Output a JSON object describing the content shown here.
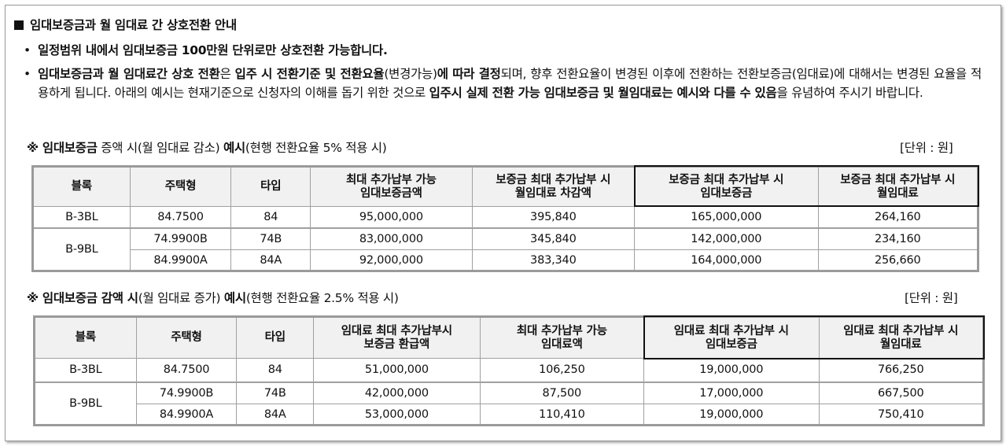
{
  "heading": "임대보증금과 월 임대료 간 상호전환 안내",
  "bullet_mark": "•",
  "bullet1": "일정범위 내에서 임대보증금 100만원 단위로만 상호전환 가능합니다.",
  "bullet2": {
    "p1": "임대보증금과 월 임대료간 상호 전환",
    "p2": "은 ",
    "p3": "입주 시 전환기준 및 전환요율",
    "p4": "(변경가능)",
    "p5": "에 따라 결정",
    "p6": "되며, 향후 전환요율이 변경된 이후에 전환하는 전환보증금(임대료)에 대해서는 변경된 요율을 적용하게 됩니다. 아래의 예시는 현재기준으로 신청자의 이해를 돕기 위한 것으로 ",
    "p7": "입주시 실제 전환 가능 임대보증금 및 월임대료는 예시와 다를 수 있음",
    "p8": "을 유념하여 주시기 바랍니다."
  },
  "section1": {
    "p1": "※ 임대보증금",
    "p2": " 증액 시",
    "p3": "(월 임대료 감소) ",
    "p4": "예시",
    "p5": "(현행 전환요율 5% 적용 시)",
    "unit": "[단위 : 원]",
    "headers": [
      [
        "블록"
      ],
      [
        "주택형"
      ],
      [
        "타입"
      ],
      [
        "최대 추가납부 가능",
        "임대보증금액"
      ],
      [
        "보증금 최대 추가납부 시",
        "월임대료 차감액"
      ],
      [
        "보증금 최대 추가납부 시",
        "임대보증금"
      ],
      [
        "보증금 최대 추가납부 시",
        "월임대료"
      ]
    ],
    "rows": [
      {
        "block": "B-3BL",
        "type": "84.7500",
        "tp": "84",
        "a": "95,000,000",
        "b": "395,840",
        "c": "165,000,000",
        "d": "264,160"
      },
      {
        "block": "B-9BL",
        "type": "74.9900B",
        "tp": "74B",
        "a": "83,000,000",
        "b": "345,840",
        "c": "142,000,000",
        "d": "234,160"
      },
      {
        "type": "84.9900A",
        "tp": "84A",
        "a": "92,000,000",
        "b": "383,340",
        "c": "164,000,000",
        "d": "256,660"
      }
    ]
  },
  "section2": {
    "p1": "※ 임대보증금 감액 시",
    "p2": "(월 임대료 증가) ",
    "p3": "예시",
    "p4": "(현행 전환요율 2.5% 적용 시)",
    "unit": "[단위 : 원]",
    "headers": [
      [
        "블록"
      ],
      [
        "주택형"
      ],
      [
        "타입"
      ],
      [
        "임대료 최대 추가납부시",
        "보증금 환급액"
      ],
      [
        "최대 추가납부 가능",
        "임대료액"
      ],
      [
        "임대료 최대 추가납부 시",
        "임대보증금"
      ],
      [
        "임대료 최대 추가납부 시",
        "월임대료"
      ]
    ],
    "rows": [
      {
        "block": "B-3BL",
        "type": "84.7500",
        "tp": "84",
        "a": "51,000,000",
        "b": "106,250",
        "c": "19,000,000",
        "d": "766,250"
      },
      {
        "block": "B-9BL",
        "type": "74.9900B",
        "tp": "74B",
        "a": "42,000,000",
        "b": "87,500",
        "c": "17,000,000",
        "d": "667,500"
      },
      {
        "type": "84.9900A",
        "tp": "84A",
        "a": "53,000,000",
        "b": "110,410",
        "c": "19,000,000",
        "d": "750,410"
      }
    ]
  }
}
